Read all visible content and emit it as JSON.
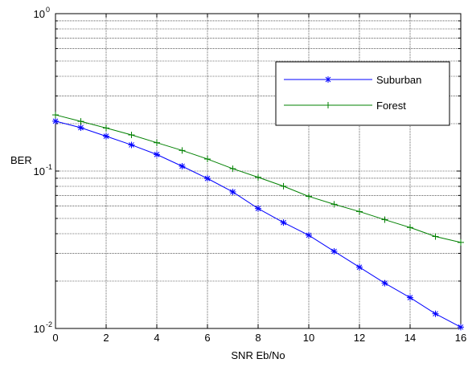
{
  "chart_data": {
    "type": "line",
    "title": "",
    "xlabel": "SNR  Eb/No",
    "ylabel": "BER",
    "y_scale": "log",
    "xlim": [
      0,
      16
    ],
    "ylim": [
      0.01,
      1
    ],
    "x_ticks": [
      "0",
      "2",
      "4",
      "6",
      "8",
      "10",
      "12",
      "14",
      "16"
    ],
    "y_ticks": [
      {
        "base": "10",
        "exp": "-2"
      },
      {
        "base": "10",
        "exp": "-1"
      },
      {
        "base": "10",
        "exp": "0"
      }
    ],
    "grid": true,
    "legend": "top-right",
    "x": [
      0,
      1,
      2,
      3,
      4,
      5,
      6,
      7,
      8,
      9,
      10,
      11,
      12,
      13,
      14,
      15,
      16
    ],
    "series": [
      {
        "name": "Suburban",
        "color": "#0000ff",
        "marker": "asterisk",
        "values": [
          0.2074,
          0.1885,
          0.1664,
          0.1466,
          0.1274,
          0.1073,
          0.0897,
          0.0737,
          0.0578,
          0.0471,
          0.0391,
          0.0309,
          0.0245,
          0.0194,
          0.0157,
          0.0124,
          0.0102
        ]
      },
      {
        "name": "Forest",
        "color": "#008000",
        "marker": "plus",
        "values": [
          0.2274,
          0.2068,
          0.1877,
          0.1696,
          0.1514,
          0.1352,
          0.1192,
          0.1035,
          0.0913,
          0.0801,
          0.069,
          0.0615,
          0.0553,
          0.0491,
          0.0438,
          0.0384,
          0.0352
        ]
      }
    ]
  }
}
